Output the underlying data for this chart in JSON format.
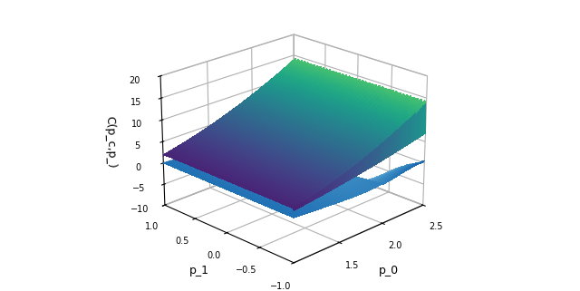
{
  "xlabel": "p_0",
  "ylabel": "p_1",
  "zlabel": "C(p_c,p_)",
  "p0_range": [
    1.0,
    2.5
  ],
  "p1_range": [
    -1.0,
    1.0
  ],
  "zlim": [
    -10,
    20
  ],
  "p0_ticks": [
    1.5,
    2.0,
    2.5
  ],
  "p1_ticks": [
    -1.0,
    -0.5,
    0.0,
    0.5,
    1.0
  ],
  "z_ticks": [
    -10,
    -5,
    0,
    5,
    10,
    15,
    20
  ],
  "figsize": [
    6.4,
    3.21
  ],
  "dpi": 100,
  "elev": 22,
  "azim": -135
}
